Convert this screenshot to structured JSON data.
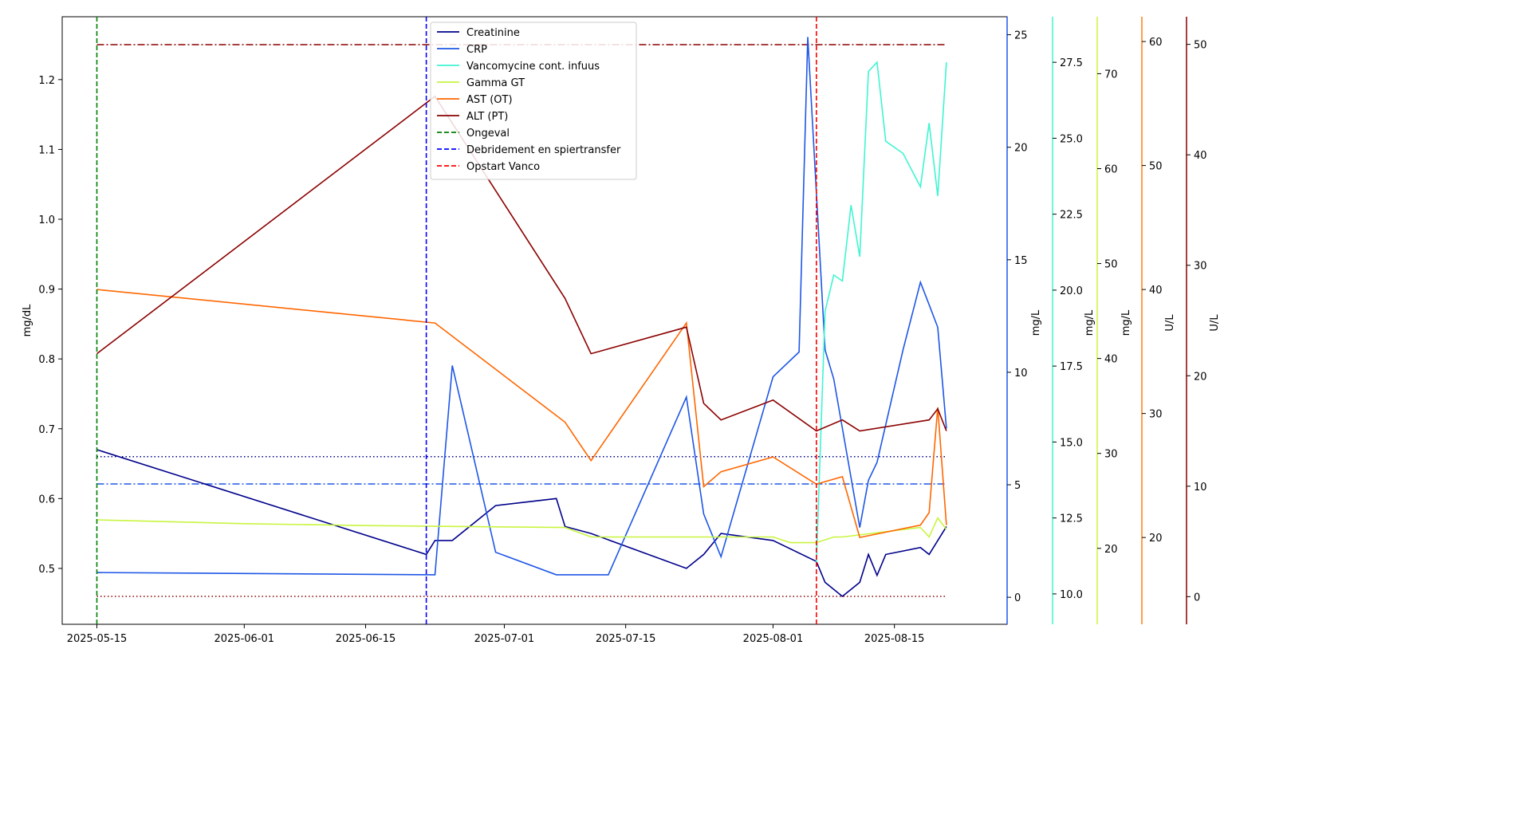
{
  "chart_data": {
    "type": "line",
    "x_domain": [
      "2025-05-11",
      "2025-08-28"
    ],
    "x_ticks": [
      "2025-05-15",
      "2025-06-01",
      "2025-06-15",
      "2025-07-01",
      "2025-07-15",
      "2025-08-01",
      "2025-08-15"
    ],
    "axes": [
      {
        "id": "ax0",
        "label": "mg/dL",
        "side": "left",
        "color": "#000000",
        "range": [
          0.42,
          1.29
        ],
        "ticks": [
          0.5,
          0.6,
          0.7,
          0.8,
          0.9,
          1.0,
          1.1,
          1.2
        ],
        "decimals": 1
      },
      {
        "id": "ax1",
        "label": "mg/L",
        "side": "right",
        "color": "#1e56e6",
        "range": [
          -1.2,
          25.8
        ],
        "ticks": [
          0,
          5,
          10,
          15,
          20,
          25
        ],
        "decimals": 0
      },
      {
        "id": "ax2",
        "label": "mg/L",
        "side": "right",
        "color": "#3ff5d0",
        "range": [
          9.0,
          29.0
        ],
        "ticks": [
          10.0,
          12.5,
          15.0,
          17.5,
          20.0,
          22.5,
          25.0,
          27.5
        ],
        "decimals": 1
      },
      {
        "id": "ax3",
        "label": "mg/L",
        "side": "right",
        "color": "#c8f53f",
        "range": [
          12.0,
          76.0
        ],
        "ticks": [
          20,
          30,
          40,
          50,
          60,
          70
        ],
        "decimals": 0
      },
      {
        "id": "ax4",
        "label": "U/L",
        "side": "right",
        "color": "#ff7f0e",
        "range": [
          13.0,
          62.0
        ],
        "ticks": [
          20,
          30,
          40,
          50,
          60
        ],
        "decimals": 0
      },
      {
        "id": "ax5",
        "label": "U/L",
        "side": "right",
        "color": "#8b0000",
        "range": [
          -2.5,
          52.5
        ],
        "ticks": [
          0,
          10,
          20,
          30,
          40,
          50
        ],
        "decimals": 0
      }
    ],
    "series": [
      {
        "name": "Creatinine",
        "axis": "ax0",
        "color": "#00008b",
        "points": [
          [
            "2025-05-15",
            0.67
          ],
          [
            "2025-06-22",
            0.52
          ],
          [
            "2025-06-23",
            0.54
          ],
          [
            "2025-06-25",
            0.54
          ],
          [
            "2025-06-30",
            0.59
          ],
          [
            "2025-07-07",
            0.6
          ],
          [
            "2025-07-08",
            0.56
          ],
          [
            "2025-07-11",
            0.55
          ],
          [
            "2025-07-22",
            0.5
          ],
          [
            "2025-07-24",
            0.52
          ],
          [
            "2025-07-26",
            0.55
          ],
          [
            "2025-08-01",
            0.54
          ],
          [
            "2025-08-06",
            0.51
          ],
          [
            "2025-08-07",
            0.48
          ],
          [
            "2025-08-09",
            0.46
          ],
          [
            "2025-08-11",
            0.48
          ],
          [
            "2025-08-12",
            0.52
          ],
          [
            "2025-08-13",
            0.49
          ],
          [
            "2025-08-14",
            0.52
          ],
          [
            "2025-08-18",
            0.53
          ],
          [
            "2025-08-19",
            0.52
          ],
          [
            "2025-08-21",
            0.56
          ]
        ]
      },
      {
        "name": "CRP",
        "axis": "ax1",
        "color": "#1e56e6",
        "points": [
          [
            "2025-05-15",
            1.1
          ],
          [
            "2025-06-23",
            1.0
          ],
          [
            "2025-06-25",
            10.3
          ],
          [
            "2025-06-30",
            2.0
          ],
          [
            "2025-07-07",
            1.0
          ],
          [
            "2025-07-13",
            1.0
          ],
          [
            "2025-07-22",
            8.9
          ],
          [
            "2025-07-24",
            3.7
          ],
          [
            "2025-07-26",
            1.8
          ],
          [
            "2025-08-01",
            9.8
          ],
          [
            "2025-08-04",
            10.9
          ],
          [
            "2025-08-05",
            24.9
          ],
          [
            "2025-08-07",
            11.0
          ],
          [
            "2025-08-08",
            9.7
          ],
          [
            "2025-08-11",
            3.1
          ],
          [
            "2025-08-12",
            5.2
          ],
          [
            "2025-08-13",
            6.0
          ],
          [
            "2025-08-16",
            11.0
          ],
          [
            "2025-08-18",
            14.0
          ],
          [
            "2025-08-19",
            13.0
          ],
          [
            "2025-08-20",
            12.0
          ],
          [
            "2025-08-21",
            7.5
          ]
        ]
      },
      {
        "name": "Vancomycine cont. infuus",
        "axis": "ax2",
        "color": "#3ff5d0",
        "points": [
          [
            "2025-08-06",
            11.0
          ],
          [
            "2025-08-07",
            19.3
          ],
          [
            "2025-08-08",
            20.5
          ],
          [
            "2025-08-09",
            20.3
          ],
          [
            "2025-08-10",
            22.8
          ],
          [
            "2025-08-11",
            21.1
          ],
          [
            "2025-08-12",
            27.2
          ],
          [
            "2025-08-13",
            27.5
          ],
          [
            "2025-08-14",
            24.9
          ],
          [
            "2025-08-16",
            24.5
          ],
          [
            "2025-08-18",
            23.4
          ],
          [
            "2025-08-19",
            25.5
          ],
          [
            "2025-08-20",
            23.1
          ],
          [
            "2025-08-21",
            27.5
          ]
        ]
      },
      {
        "name": "Gamma GT",
        "axis": "ax3",
        "color": "#c8f53f",
        "points": [
          [
            "2025-05-15",
            23.0
          ],
          [
            "2025-06-01",
            22.6
          ],
          [
            "2025-06-15",
            22.4
          ],
          [
            "2025-07-08",
            22.2
          ],
          [
            "2025-07-11",
            21.2
          ],
          [
            "2025-08-01",
            21.2
          ],
          [
            "2025-08-03",
            20.6
          ],
          [
            "2025-08-06",
            20.6
          ],
          [
            "2025-08-08",
            21.2
          ],
          [
            "2025-08-09",
            21.2
          ],
          [
            "2025-08-18",
            22.2
          ],
          [
            "2025-08-19",
            21.2
          ],
          [
            "2025-08-20",
            23.2
          ],
          [
            "2025-08-21",
            22.0
          ]
        ]
      },
      {
        "name": "AST (OT)",
        "axis": "ax4",
        "color": "#ff6600",
        "points": [
          [
            "2025-05-15",
            40.0
          ],
          [
            "2025-06-23",
            37.3
          ],
          [
            "2025-07-08",
            29.3
          ],
          [
            "2025-07-11",
            26.2
          ],
          [
            "2025-07-22",
            37.3
          ],
          [
            "2025-07-24",
            24.1
          ],
          [
            "2025-07-26",
            25.3
          ],
          [
            "2025-08-01",
            26.5
          ],
          [
            "2025-08-06",
            24.3
          ],
          [
            "2025-08-09",
            24.9
          ],
          [
            "2025-08-11",
            20.0
          ],
          [
            "2025-08-18",
            21.0
          ],
          [
            "2025-08-19",
            22.0
          ],
          [
            "2025-08-20",
            30.5
          ],
          [
            "2025-08-21",
            21.0
          ]
        ]
      },
      {
        "name": "ALT (PT)",
        "axis": "ax5",
        "color": "#8b0000",
        "points": [
          [
            "2025-05-15",
            22.0
          ],
          [
            "2025-06-23",
            45.3
          ],
          [
            "2025-07-08",
            27.0
          ],
          [
            "2025-07-11",
            22.0
          ],
          [
            "2025-07-22",
            24.4
          ],
          [
            "2025-07-24",
            17.5
          ],
          [
            "2025-07-26",
            16.0
          ],
          [
            "2025-08-01",
            17.8
          ],
          [
            "2025-08-06",
            15.0
          ],
          [
            "2025-08-09",
            16.0
          ],
          [
            "2025-08-11",
            15.0
          ],
          [
            "2025-08-19",
            16.0
          ],
          [
            "2025-08-20",
            17.0
          ],
          [
            "2025-08-21",
            15.0
          ]
        ]
      }
    ],
    "reference_lines": [
      {
        "axis": "ax0",
        "value": 1.25,
        "color": "#8b0000",
        "style": "dashdot",
        "from": "2025-05-15",
        "to": "2025-08-21"
      },
      {
        "axis": "ax0",
        "value": 0.66,
        "color": "#00008b",
        "style": "dotted",
        "from": "2025-05-15",
        "to": "2025-08-21"
      },
      {
        "axis": "ax0",
        "value": 0.621,
        "color": "#1e56e6",
        "style": "dashdot",
        "from": "2025-05-15",
        "to": "2025-08-21"
      },
      {
        "axis": "ax0",
        "value": 0.46,
        "color": "#8b0000",
        "style": "dotted",
        "from": "2025-05-15",
        "to": "2025-08-21"
      }
    ],
    "events": [
      {
        "name": "Ongeval",
        "date": "2025-05-15",
        "color": "#008000"
      },
      {
        "name": "Debridement en spiertransfer",
        "date": "2025-06-22",
        "color": "#0000ff"
      },
      {
        "name": "Opstart Vanco",
        "date": "2025-08-06",
        "color": "#ff0000"
      }
    ],
    "legend_position": "top-center"
  }
}
